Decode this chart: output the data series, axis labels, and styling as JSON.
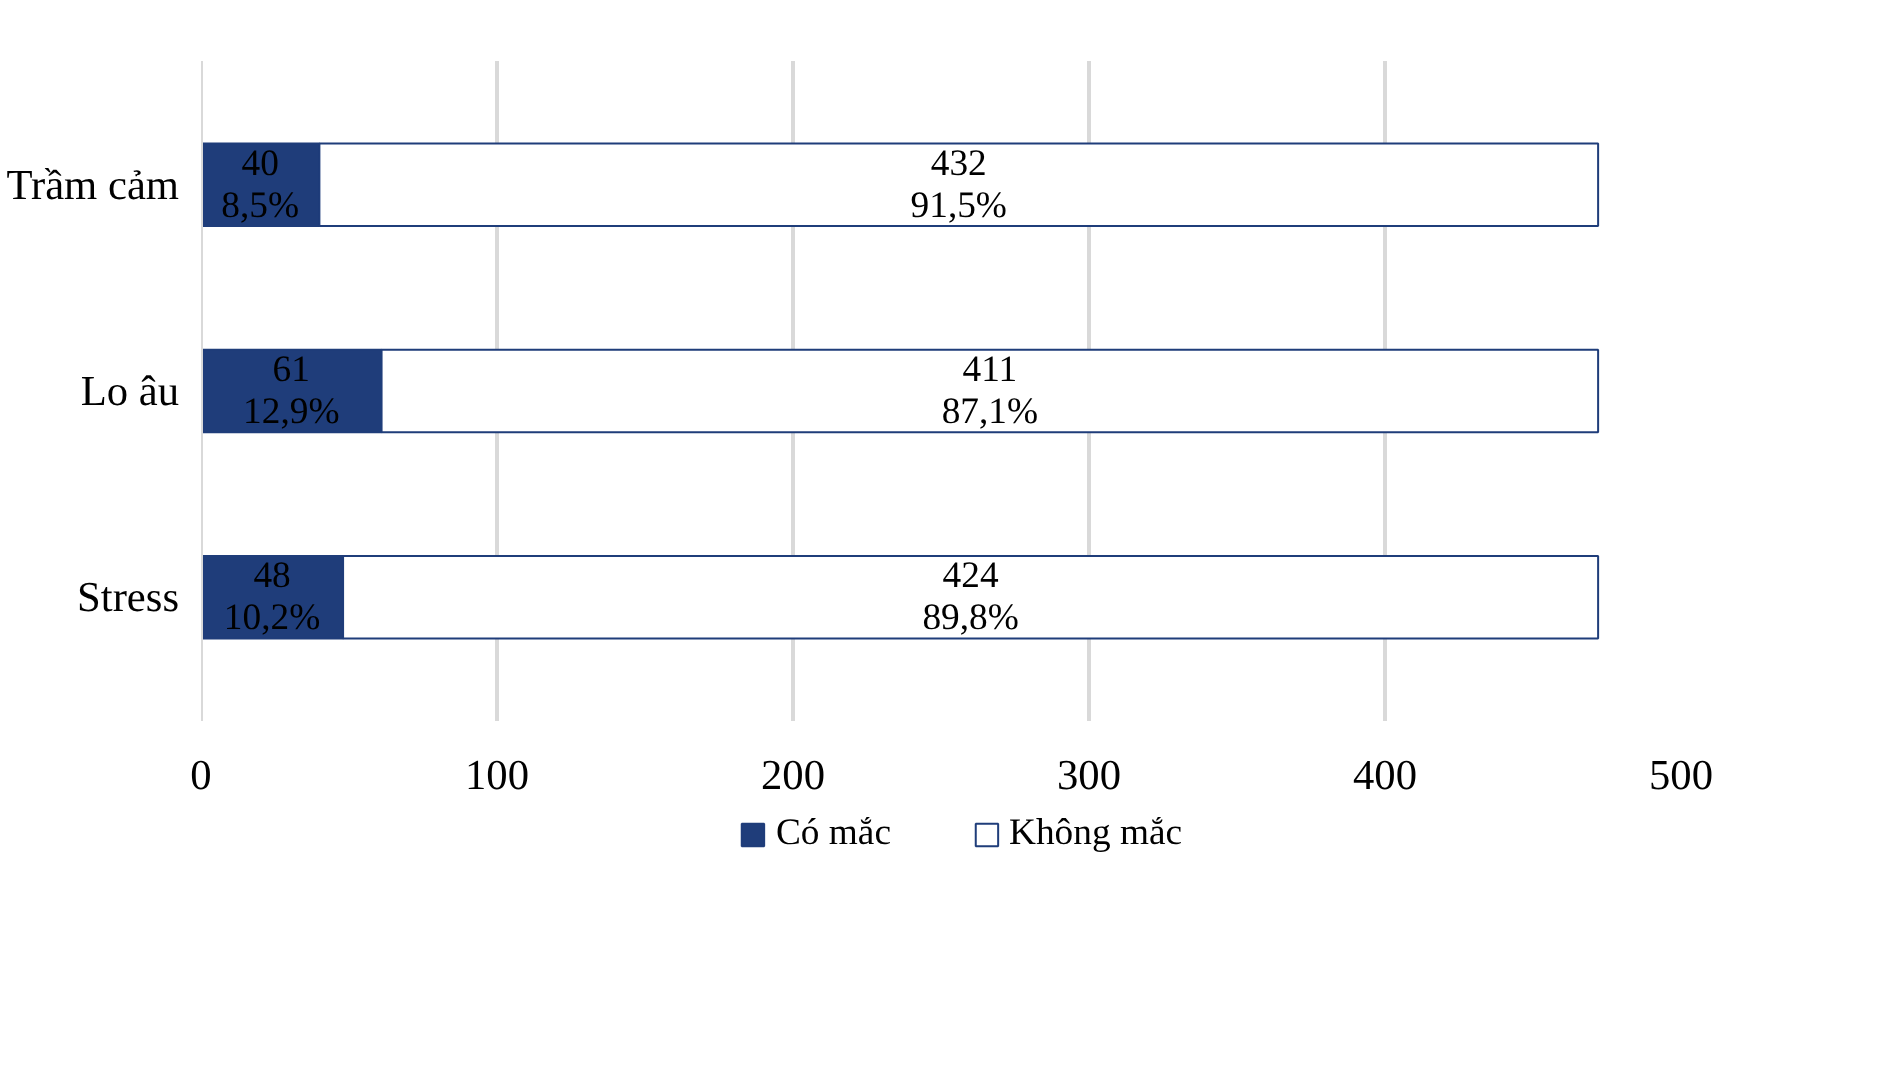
{
  "chart_data": {
    "type": "bar",
    "orientation": "horizontal",
    "stacked": true,
    "categories": [
      "Trầm cảm",
      "Lo âu",
      "Stress"
    ],
    "series": [
      {
        "name": "Có mắc",
        "color": "#1f3d7a",
        "values": [
          40,
          61,
          48
        ],
        "value_labels": [
          "40\n8,5%",
          "61\n12,9%",
          "48\n10,2%"
        ]
      },
      {
        "name": "Không mắc",
        "color": "#ffffff",
        "values": [
          432,
          411,
          424
        ],
        "value_labels": [
          "432\n91,5%",
          "411\n87,1%",
          "424\n89,8%"
        ]
      }
    ],
    "xlim": [
      0,
      500
    ],
    "xticks": [
      0,
      100,
      200,
      300,
      400,
      500
    ],
    "grid": "x",
    "legend": "bottom"
  }
}
